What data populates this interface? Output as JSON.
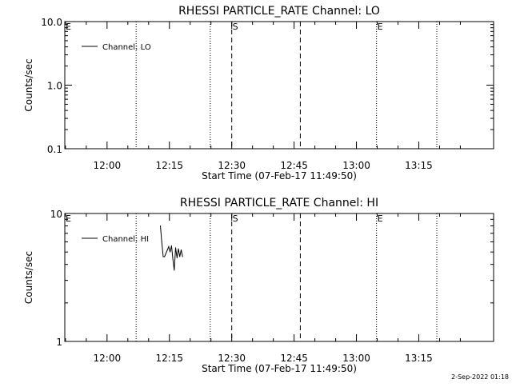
{
  "footer": {
    "timestamp": "2-Sep-2022 01:18"
  },
  "chart_data": [
    {
      "type": "line",
      "title": "RHESSI PARTICLE_RATE Channel: LO",
      "xlabel": "Start Time (07-Feb-17 11:49:50)",
      "ylabel": "Counts/sec",
      "yscale": "log",
      "ylim": [
        0.1,
        10.0
      ],
      "ytick_values": [
        0.1,
        1.0,
        10.0
      ],
      "ytick_labels": [
        "0.1",
        "1.0",
        "10.0"
      ],
      "xlim": [
        "11:49:50",
        "13:33:00"
      ],
      "xtick_values": [
        "12:00",
        "12:15",
        "12:30",
        "12:45",
        "13:00",
        "13:15"
      ],
      "xtick_labels": [
        "12:00",
        "12:15",
        "12:30",
        "12:45",
        "13:00",
        "13:15"
      ],
      "legend": {
        "placement": "top-left",
        "entries": [
          "Channel: LO"
        ]
      },
      "series": [
        {
          "name": "Channel: LO",
          "x": [],
          "values": []
        }
      ],
      "vlines": [
        {
          "x": "12:07:00",
          "style": "dotted"
        },
        {
          "x": "12:24:50",
          "style": "dotted"
        },
        {
          "x": "12:30:00",
          "style": "dashed"
        },
        {
          "x": "12:46:30",
          "style": "dashed"
        },
        {
          "x": "13:04:50",
          "style": "dotted"
        },
        {
          "x": "13:19:20",
          "style": "dotted"
        }
      ],
      "annotations": [
        {
          "x": "11:49:50",
          "label": "E"
        },
        {
          "x": "12:30:00",
          "label": "S"
        },
        {
          "x": "13:04:50",
          "label": "E"
        }
      ]
    },
    {
      "type": "line",
      "title": "RHESSI PARTICLE_RATE Channel: HI",
      "xlabel": "Start Time (07-Feb-17 11:49:50)",
      "ylabel": "Counts/sec",
      "yscale": "log",
      "ylim": [
        1,
        10
      ],
      "ytick_values": [
        1,
        10
      ],
      "ytick_labels": [
        "1",
        "10"
      ],
      "xlim": [
        "11:49:50",
        "13:33:00"
      ],
      "xtick_values": [
        "12:00",
        "12:15",
        "12:30",
        "12:45",
        "13:00",
        "13:15"
      ],
      "xtick_labels": [
        "12:00",
        "12:15",
        "12:30",
        "12:45",
        "13:00",
        "13:15"
      ],
      "legend": {
        "placement": "top-left",
        "entries": [
          "Channel: HI"
        ]
      },
      "series": [
        {
          "name": "Channel: HI",
          "x": [
            "12:12:50",
            "12:13:10",
            "12:13:30",
            "12:13:50",
            "12:14:50",
            "12:15:10",
            "12:15:30",
            "12:15:50",
            "12:16:10",
            "12:16:30",
            "12:16:50",
            "12:17:10",
            "12:17:30",
            "12:17:50",
            "12:18:10"
          ],
          "values": [
            8.0,
            6.0,
            4.6,
            4.6,
            5.5,
            5.0,
            5.6,
            4.4,
            3.6,
            5.4,
            4.5,
            5.3,
            4.6,
            5.2,
            4.6
          ]
        }
      ],
      "vlines": [
        {
          "x": "12:07:00",
          "style": "dotted"
        },
        {
          "x": "12:24:50",
          "style": "dotted"
        },
        {
          "x": "12:30:00",
          "style": "dashed"
        },
        {
          "x": "12:46:30",
          "style": "dashed"
        },
        {
          "x": "13:04:50",
          "style": "dotted"
        },
        {
          "x": "13:19:20",
          "style": "dotted"
        }
      ],
      "annotations": [
        {
          "x": "11:49:50",
          "label": "E"
        },
        {
          "x": "12:30:00",
          "label": "S"
        },
        {
          "x": "13:04:50",
          "label": "E"
        }
      ]
    }
  ]
}
